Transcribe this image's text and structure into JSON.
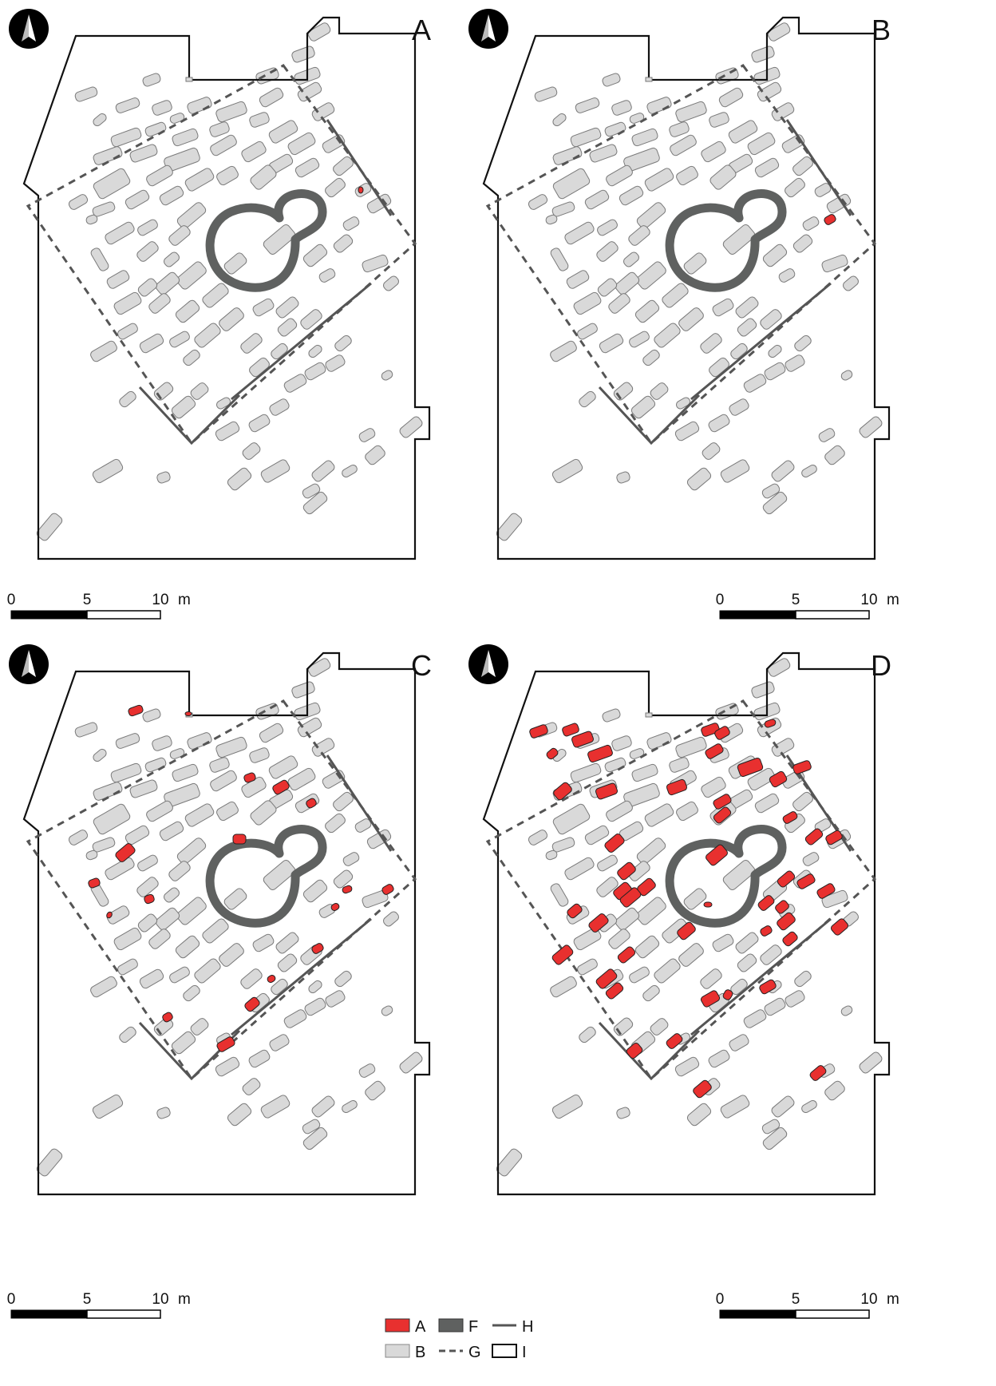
{
  "panels": [
    {
      "label": "A"
    },
    {
      "label": "B"
    },
    {
      "label": "C"
    },
    {
      "label": "D"
    }
  ],
  "north_arrow_icon": "north-arrow-icon",
  "scale_bar": {
    "ticks": [
      "0",
      "5",
      "10"
    ],
    "unit": "m"
  },
  "legend": [
    {
      "code": "A",
      "symbol": "red-filled-box",
      "color": "#e8302f"
    },
    {
      "code": "F",
      "symbol": "dark-filled-box",
      "color": "#5f6160"
    },
    {
      "code": "H",
      "symbol": "solid-line",
      "color": "#555555"
    },
    {
      "code": "B",
      "symbol": "grey-filled-box",
      "color": "#d9d9d9"
    },
    {
      "code": "G",
      "symbol": "dashed-line",
      "color": "#555555"
    },
    {
      "code": "I",
      "symbol": "outline-box",
      "color": "#111111"
    }
  ],
  "colors": {
    "highlight": "#e8302f",
    "feature": "#d9d9d9",
    "feature_stroke": "#7a7a7a",
    "ring": "#5f6160",
    "wall": "#555555",
    "outline": "#111111"
  }
}
